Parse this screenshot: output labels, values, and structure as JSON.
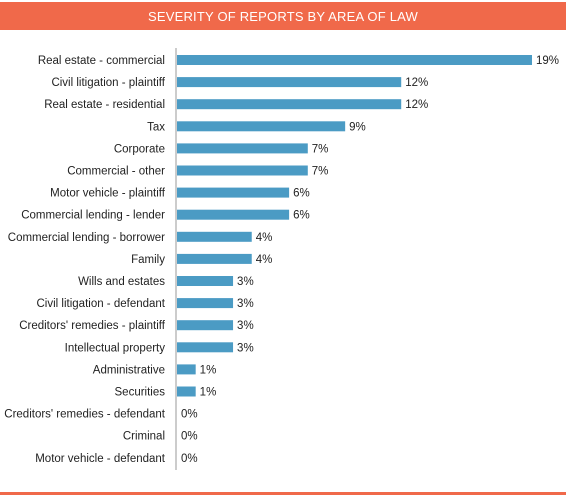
{
  "chart_data": {
    "type": "bar",
    "orientation": "horizontal",
    "title": "SEVERITY OF REPORTS BY AREA OF LAW",
    "categories": [
      "Real estate - commercial",
      "Civil litigation - plaintiff",
      "Real estate - residential",
      "Tax",
      "Corporate",
      "Commercial - other",
      "Motor vehicle - plaintiff",
      "Commercial lending - lender",
      "Commercial lending - borrower",
      "Family",
      "Wills and estates",
      "Civil litigation - defendant",
      "Creditors' remedies - plaintiff",
      "Intellectual property",
      "Administrative",
      "Securities",
      "Creditors' remedies - defendant",
      "Criminal",
      "Motor vehicle - defendant"
    ],
    "values": [
      19,
      12,
      12,
      9,
      7,
      7,
      6,
      6,
      4,
      4,
      3,
      3,
      3,
      3,
      1,
      1,
      0,
      0,
      0
    ],
    "value_labels": [
      "19%",
      "12%",
      "12%",
      "9%",
      "7%",
      "7%",
      "6%",
      "6%",
      "4%",
      "4%",
      "3%",
      "3%",
      "3%",
      "3%",
      "1%",
      "1%",
      "0%",
      "0%",
      "0%"
    ],
    "xlim": [
      0,
      19
    ],
    "grid": false,
    "bar_color": "#4b9bc4",
    "accent_color": "#f0694a"
  }
}
